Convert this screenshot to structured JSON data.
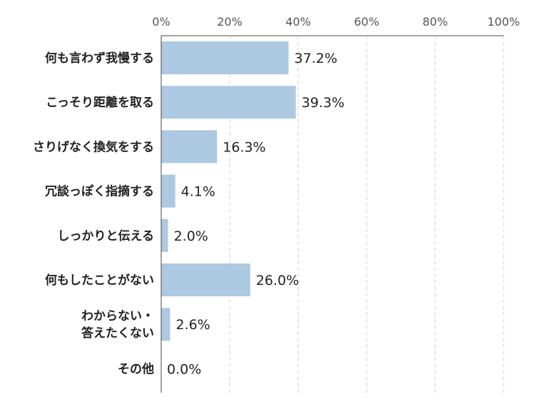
{
  "chart_data": {
    "type": "bar",
    "orientation": "horizontal",
    "categories": [
      [
        "何も言わず我慢する"
      ],
      [
        "こっそり距離を取る"
      ],
      [
        "さりげなく換気をする"
      ],
      [
        "冗談っぽく指摘する"
      ],
      [
        "しっかりと伝える"
      ],
      [
        "何もしたことがない"
      ],
      [
        "わからない・",
        "答えたくない"
      ],
      [
        "その他"
      ]
    ],
    "values": [
      37.2,
      39.3,
      16.3,
      4.1,
      2.0,
      26.0,
      2.6,
      0.0
    ],
    "value_labels": [
      "37.2%",
      "39.3%",
      "16.3%",
      "4.1%",
      "2.0%",
      "26.0%",
      "2.6%",
      "0.0%"
    ],
    "xlim": [
      0,
      100
    ],
    "ticks": [
      0,
      20,
      40,
      60,
      80,
      100
    ],
    "tick_labels": [
      "0%",
      "20%",
      "40%",
      "60%",
      "80%",
      "100%"
    ],
    "grid": true,
    "bar_color": "#adc9e1"
  }
}
